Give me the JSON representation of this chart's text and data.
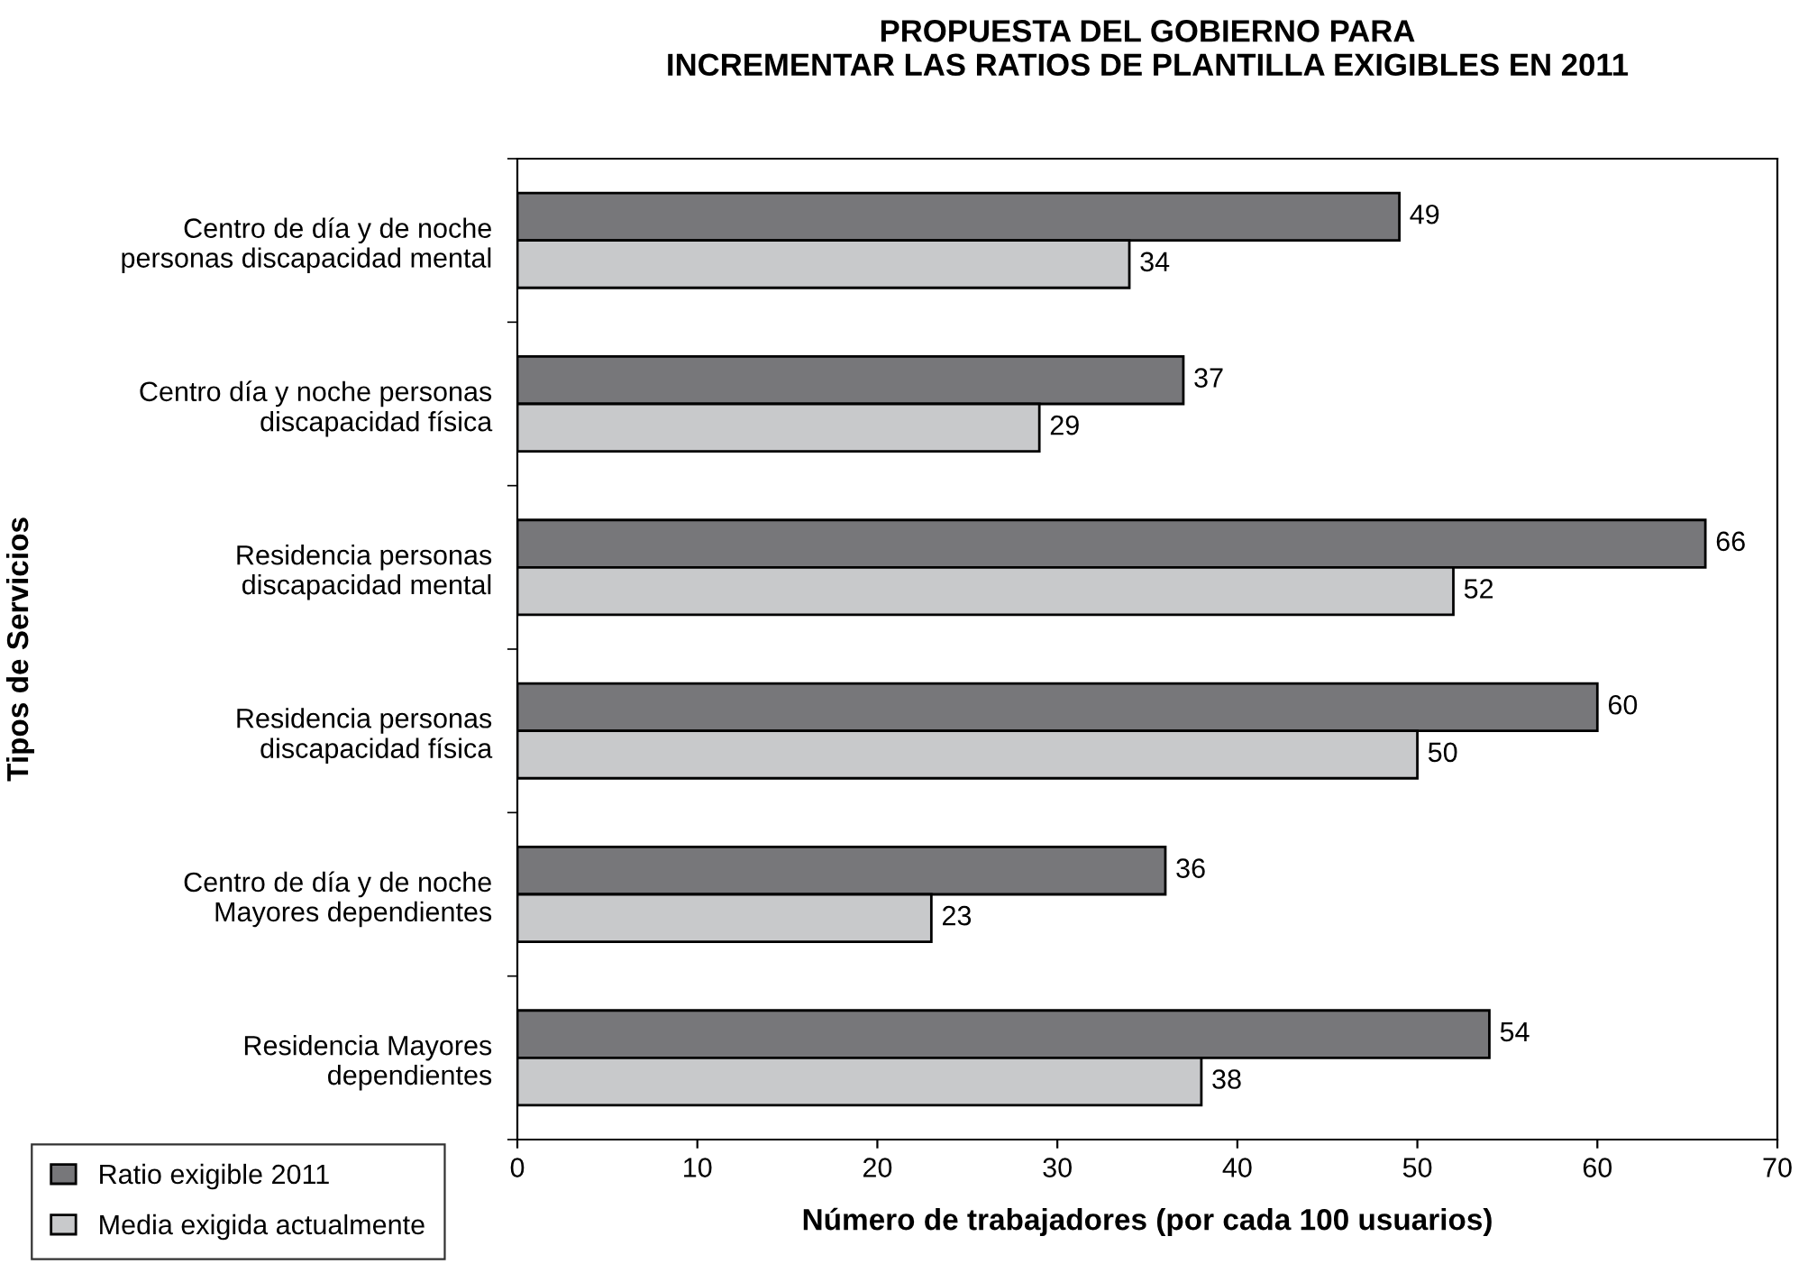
{
  "chart_data": {
    "type": "bar",
    "orientation": "horizontal",
    "title": "PROPUESTA DEL GOBIERNO PARA\nINCREMENTAR LAS RATIOS DE PLANTILLA EXIGIBLES EN 2011",
    "xlabel": "Número de trabajadores (por cada 100 usuarios)",
    "ylabel": "Tipos de Servicios",
    "categories": [
      "Centro de día y de noche\npersonas discapacidad mental",
      "Centro día y noche personas\ndiscapacidad física",
      "Residencia personas\ndiscapacidad mental",
      "Residencia personas\ndiscapacidad física",
      "Centro de día y de noche\nMayores dependientes",
      "Residencia Mayores\ndependientes"
    ],
    "series": [
      {
        "name": "Ratio exigible 2011",
        "color": "#77777a",
        "values": [
          49,
          37,
          66,
          60,
          36,
          54
        ]
      },
      {
        "name": "Media exigida actualmente",
        "color": "#c8c9cb",
        "values": [
          34,
          29,
          52,
          50,
          23,
          38
        ]
      }
    ],
    "xlim": [
      0,
      70
    ],
    "xticks": [
      0,
      10,
      20,
      30,
      40,
      50,
      60,
      70
    ],
    "data_labels": true,
    "grid": false,
    "legend": "bottom left"
  }
}
